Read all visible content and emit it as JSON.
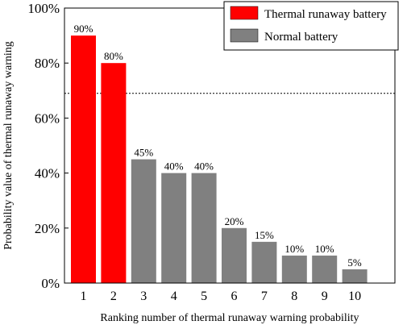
{
  "chart_data": {
    "type": "bar",
    "title": "",
    "xlabel": "Ranking number of thermal runaway warning probability",
    "ylabel": "Probability value of thermal runaway warning",
    "categories": [
      "1",
      "2",
      "3",
      "4",
      "5",
      "6",
      "7",
      "8",
      "9",
      "10"
    ],
    "values": [
      90,
      80,
      45,
      40,
      40,
      20,
      15,
      10,
      10,
      5
    ],
    "value_labels": [
      "90%",
      "80%",
      "45%",
      "40%",
      "40%",
      "20%",
      "15%",
      "10%",
      "10%",
      "5%"
    ],
    "bar_groups": [
      "thermal",
      "thermal",
      "normal",
      "normal",
      "normal",
      "normal",
      "normal",
      "normal",
      "normal",
      "normal"
    ],
    "ylim": [
      0,
      100
    ],
    "yticks": [
      0,
      20,
      40,
      60,
      80,
      100
    ],
    "ytick_labels": [
      "0%",
      "20%",
      "40%",
      "60%",
      "80%",
      "100%"
    ],
    "threshold_line": 69,
    "grid": false,
    "legend": {
      "position": "top-right",
      "entries": [
        {
          "key": "thermal",
          "label": "Thermal runaway battery",
          "color": "#ff0000"
        },
        {
          "key": "normal",
          "label": "Normal battery",
          "color": "#808080"
        }
      ]
    }
  }
}
